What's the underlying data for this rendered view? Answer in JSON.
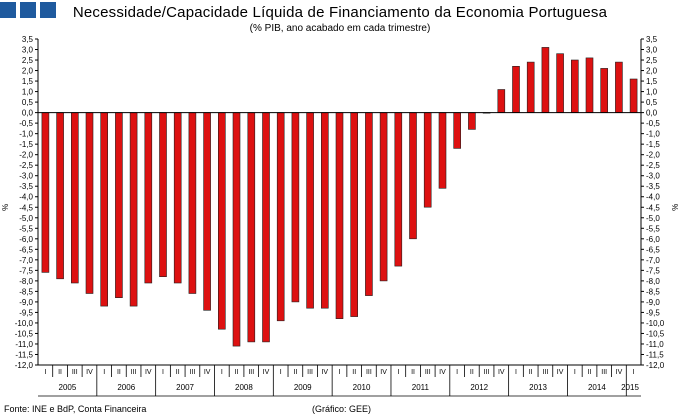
{
  "header": {
    "title": "Necessidade/Capacidade Líquida de Financiamento da Economia Portuguesa",
    "subtitle": "(% PIB, ano acabado em cada trimestre)",
    "logo_color": "#1f5a9e"
  },
  "footer": {
    "source": "Fonte: INE e BdP, Conta Financeira",
    "credit": "(Gráfico: GEE)"
  },
  "chart_data": {
    "type": "bar",
    "title": "Necessidade/Capacidade Líquida de Financiamento da Economia Portuguesa",
    "subtitle": "(% PIB, ano acabado em cada trimestre)",
    "ylabel_left": "%",
    "ylabel_right": "%",
    "ylim": [
      -12.0,
      3.5
    ],
    "ytick_step": 0.5,
    "grid": false,
    "bar_color": "#dd1111",
    "quarter_labels": [
      "I",
      "II",
      "III",
      "IV"
    ],
    "years": [
      "2005",
      "2006",
      "2007",
      "2008",
      "2009",
      "2010",
      "2011",
      "2012",
      "2013",
      "2014",
      "2015"
    ],
    "categories": [
      "2005 I",
      "2005 II",
      "2005 III",
      "2005 IV",
      "2006 I",
      "2006 II",
      "2006 III",
      "2006 IV",
      "2007 I",
      "2007 II",
      "2007 III",
      "2007 IV",
      "2008 I",
      "2008 II",
      "2008 III",
      "2008 IV",
      "2009 I",
      "2009 II",
      "2009 III",
      "2009 IV",
      "2010 I",
      "2010 II",
      "2010 III",
      "2010 IV",
      "2011 I",
      "2011 II",
      "2011 III",
      "2011 IV",
      "2012 I",
      "2012 II",
      "2012 III",
      "2012 IV",
      "2013 I",
      "2013 II",
      "2013 III",
      "2013 IV",
      "2014 I",
      "2014 II",
      "2014 III",
      "2014 IV",
      "2015 I"
    ],
    "values": [
      -7.6,
      -7.9,
      -8.1,
      -8.6,
      -9.2,
      -8.8,
      -9.2,
      -8.1,
      -7.8,
      -8.1,
      -8.6,
      -9.4,
      -10.3,
      -11.1,
      -10.9,
      -10.9,
      -9.9,
      -9.0,
      -9.3,
      -9.3,
      -9.8,
      -9.7,
      -8.7,
      -8.0,
      -7.3,
      -6.0,
      -4.5,
      -3.6,
      -1.7,
      -0.8,
      0.0,
      1.1,
      2.2,
      2.4,
      3.1,
      2.8,
      2.5,
      2.6,
      2.1,
      2.4,
      1.6
    ]
  }
}
